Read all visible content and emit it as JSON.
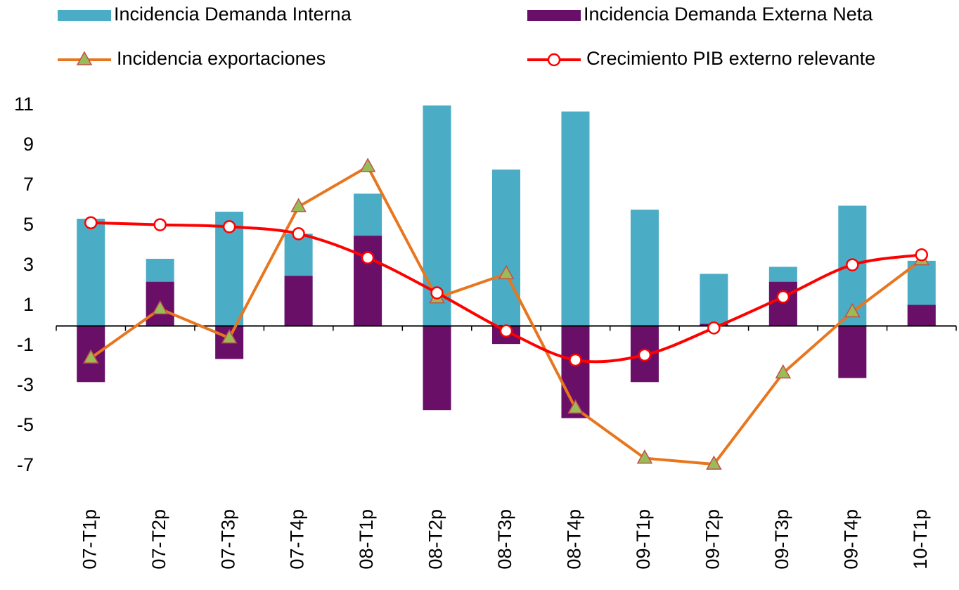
{
  "chart_data": {
    "type": "bar",
    "categories": [
      "07-T1p",
      "07-T2p",
      "07-T3p",
      "07-T4p",
      "08-T1p",
      "08-T2p",
      "08-T3p",
      "08-T4p",
      "09-T1p",
      "09-T2p",
      "09-T3p",
      "09-T4p",
      "10-T1p"
    ],
    "series": [
      {
        "name": "Incidencia Demanda Interna",
        "type": "bar",
        "color": "#4bacc6",
        "values": [
          5.35,
          3.35,
          5.7,
          4.6,
          6.6,
          11.0,
          7.8,
          10.7,
          5.8,
          2.6,
          2.95,
          6.0,
          3.25
        ]
      },
      {
        "name": "Incidencia Demanda Externa Neta",
        "type": "bar",
        "color": "#6a0f68",
        "values": [
          -2.8,
          2.2,
          -1.65,
          2.5,
          4.5,
          -4.2,
          -0.9,
          -4.6,
          -2.8,
          0.1,
          2.2,
          -2.6,
          1.05
        ]
      },
      {
        "name": "Incidencia exportaciones",
        "type": "line",
        "color": "#e8761e",
        "marker": "triangle",
        "marker_color": "#9bbb59",
        "values": [
          -1.6,
          0.85,
          -0.6,
          5.95,
          7.95,
          1.4,
          2.6,
          -4.1,
          -6.6,
          -6.9,
          -2.35,
          0.7,
          3.3
        ]
      },
      {
        "name": "Crecimiento PIB externo relevante",
        "type": "line",
        "color": "#ff0000",
        "marker": "circle",
        "marker_color": "#ffffff",
        "smooth": true,
        "values": [
          5.15,
          5.05,
          4.95,
          4.6,
          3.4,
          1.65,
          -0.25,
          -1.7,
          -1.45,
          -0.1,
          1.45,
          3.05,
          3.55
        ]
      }
    ],
    "ylim": [
      -9,
      11
    ],
    "yticks": [
      -7,
      -5,
      -3,
      -1,
      1,
      3,
      5,
      7,
      9,
      11
    ]
  }
}
